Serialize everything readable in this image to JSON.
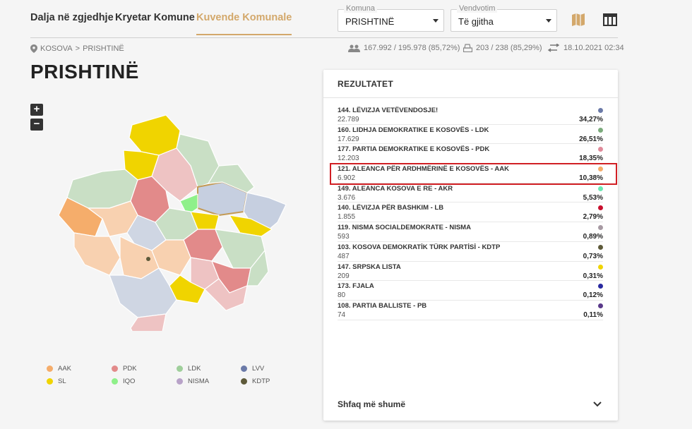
{
  "nav": {
    "tabs": [
      {
        "label": "Dalja në zgjedhje"
      },
      {
        "label": "Kryetar Komune"
      },
      {
        "label": "Kuvende Komunale"
      }
    ],
    "komuna": {
      "label": "Komuna",
      "value": "PRISHTINË"
    },
    "vendvotim": {
      "label": "Vendvotim",
      "value": "Të gjitha"
    }
  },
  "breadcrumb": {
    "country": "KOSOVA",
    "separator": ">",
    "city": "PRISHTINË"
  },
  "stats": {
    "voters": "167.992 / 195.978 (85,72%)",
    "stations": "203 / 238 (85,29%)",
    "updated": "18.10.2021 02:34"
  },
  "page_title": "PRISHTINË",
  "zoom": {
    "in": "+",
    "out": "−"
  },
  "legend": [
    {
      "label": "AAK",
      "color": "#f5ad6b"
    },
    {
      "label": "PDK",
      "color": "#e28a8a"
    },
    {
      "label": "LDK",
      "color": "#9fcf9b"
    },
    {
      "label": "LVV",
      "color": "#6b7aa8"
    },
    {
      "label": "SL",
      "color": "#f0d400"
    },
    {
      "label": "IQO",
      "color": "#8ff08a"
    },
    {
      "label": "NISMA",
      "color": "#b8a2c8"
    },
    {
      "label": "KDTP",
      "color": "#5e5a3a"
    }
  ],
  "results": {
    "title": "REZULTATET",
    "rows": [
      {
        "name": "144. LËVIZJA VETËVENDOSJE!",
        "votes": "22.789",
        "pct": "34,27%",
        "color": "#6b7aa8"
      },
      {
        "name": "160. LIDHJA DEMOKRATIKE E KOSOVËS - LDK",
        "votes": "17.629",
        "pct": "26,51%",
        "color": "#7bab7c"
      },
      {
        "name": "177. PARTIA DEMOKRATIKE E KOSOVËS - PDK",
        "votes": "12.203",
        "pct": "18,35%",
        "color": "#e08a9a"
      },
      {
        "name": "121. ALEANCA PËR ARDHMËRINË E KOSOVËS - AAK",
        "votes": "6.902",
        "pct": "10,38%",
        "color": "#f5ad6b"
      },
      {
        "name": "149. ALEANCA KOSOVA E RE - AKR",
        "votes": "3.676",
        "pct": "5,53%",
        "color": "#6de8b4"
      },
      {
        "name": "140. LËVIZJA PËR BASHKIM - LB",
        "votes": "1.855",
        "pct": "2,79%",
        "color": "#c8102e"
      },
      {
        "name": "119. NISMA SOCIALDEMOKRATE - NISMA",
        "votes": "593",
        "pct": "0,89%",
        "color": "#a79aa3"
      },
      {
        "name": "103. KOSOVA DEMOKRATİK TÜRK PARTİSİ - KDTP",
        "votes": "487",
        "pct": "0,73%",
        "color": "#5e5a3a"
      },
      {
        "name": "147. SRPSKA LISTA",
        "votes": "209",
        "pct": "0,31%",
        "color": "#f0d400"
      },
      {
        "name": "173. FJALA",
        "votes": "80",
        "pct": "0,12%",
        "color": "#2a2aa0"
      },
      {
        "name": "108. PARTIA BALLISTE - PB",
        "votes": "74",
        "pct": "0,11%",
        "color": "#5a3a8a"
      }
    ],
    "show_more": "Shfaq më shumë"
  }
}
